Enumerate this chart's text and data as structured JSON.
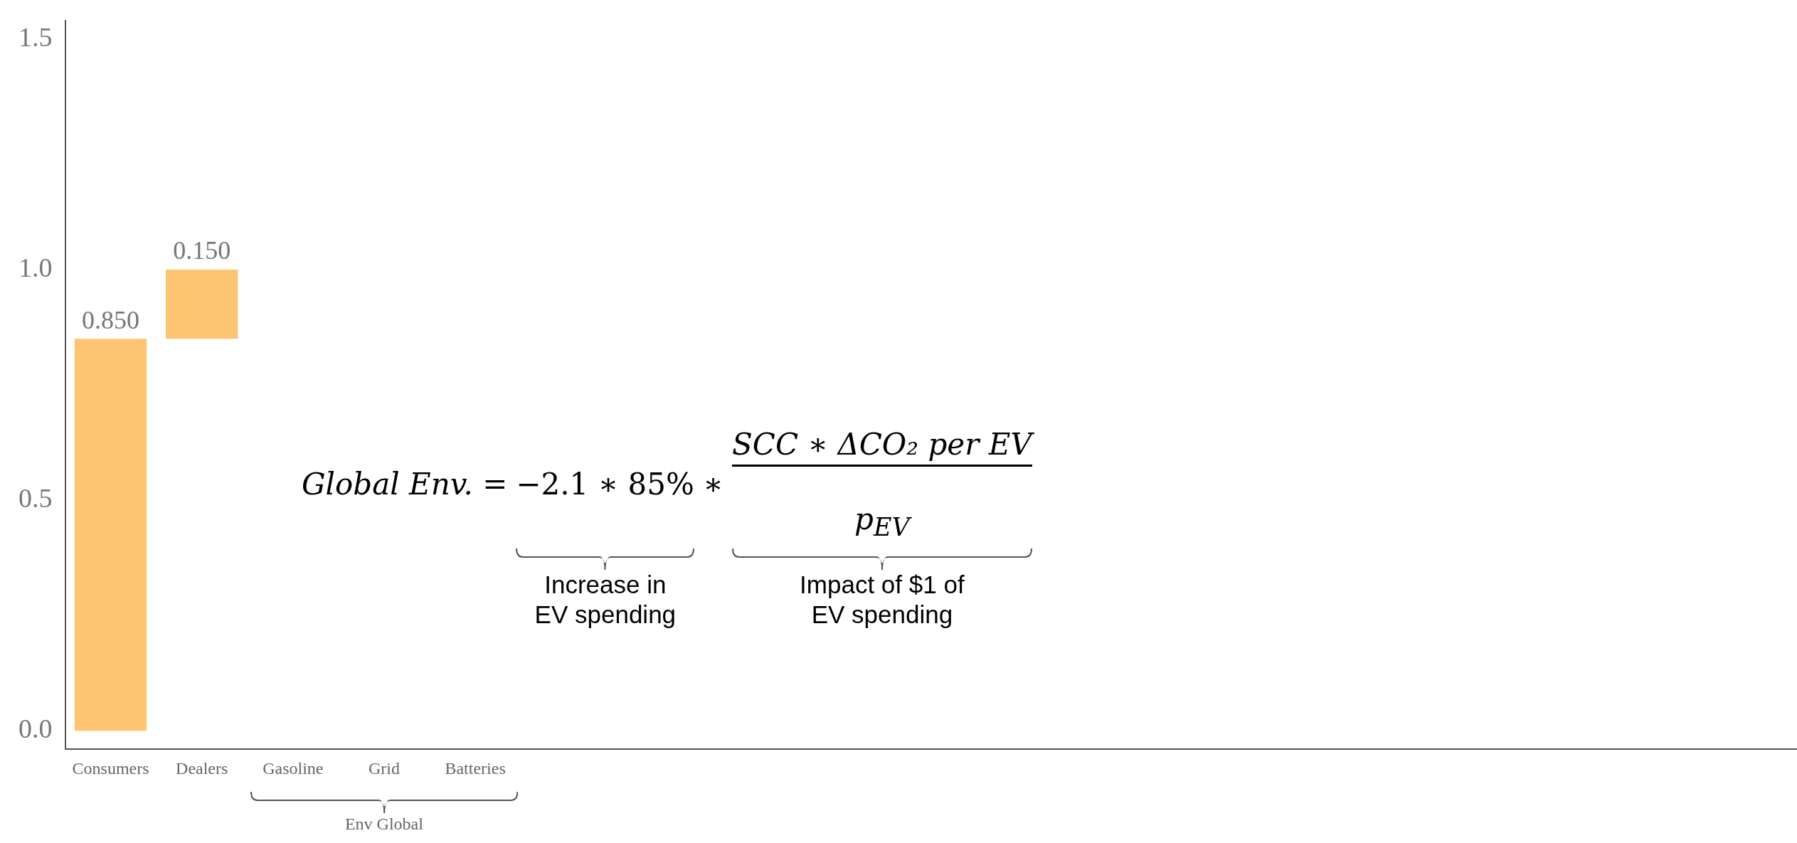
{
  "chart_data": {
    "type": "bar",
    "categories": [
      "Consumers",
      "Dealers",
      "Gasoline",
      "Grid",
      "Batteries",
      null,
      null,
      null,
      null,
      null,
      null,
      null,
      null,
      null,
      null,
      null,
      null,
      null,
      null
    ],
    "values": [
      0.85,
      0.15,
      null,
      null,
      null,
      null,
      null,
      null,
      null,
      null,
      null,
      null,
      null,
      null,
      null,
      null,
      null,
      null,
      null
    ],
    "base": [
      0,
      0.85,
      null,
      null,
      null,
      null,
      null,
      null,
      null,
      null,
      null,
      null,
      null,
      null,
      null,
      null,
      null,
      null,
      null
    ],
    "value_labels": [
      "0.850",
      "0.150",
      null,
      null,
      null,
      null,
      null,
      null,
      null,
      null,
      null,
      null,
      null,
      null,
      null,
      null,
      null,
      null,
      null
    ],
    "color": "#fdc472",
    "ylim": [
      -0.04,
      1.54
    ],
    "yticks": [
      {
        "value": 0,
        "label": "0.0"
      },
      {
        "value": 0.5,
        "label": "0.5"
      },
      {
        "value": 1,
        "label": "1.0"
      },
      {
        "value": 1.5,
        "label": "1.5"
      }
    ],
    "grid": false,
    "legend": false,
    "annotations": [
      "Global Env. =",
      "−2.1 ∗ 85%",
      "∗",
      "SCC ∗ ΔCO₂ per EV",
      "p$_{EV}$",
      "Increase in EV spending",
      "Impact of $1 of EV spending",
      "Env Global"
    ]
  }
}
